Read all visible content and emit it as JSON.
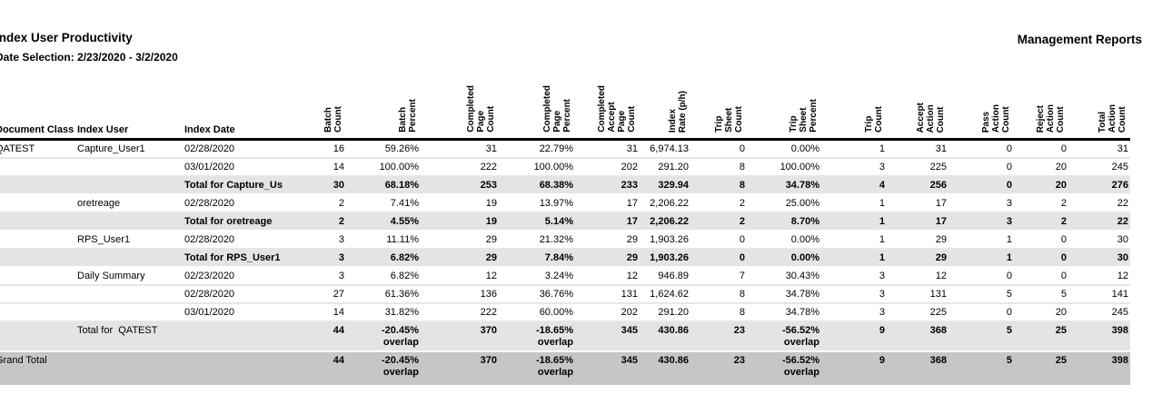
{
  "page": {
    "title": "Index User Productivity",
    "date_selection": "Date Selection: 2/23/2020 - 3/2/2020",
    "corner_title": "Management Reports"
  },
  "table": {
    "columns": [
      {
        "label": "Document Class",
        "rotated": false
      },
      {
        "label": "Index User",
        "rotated": false
      },
      {
        "label": "Index Date",
        "rotated": false
      },
      {
        "label": "Batch\nCount",
        "rotated": true
      },
      {
        "label": "Batch\nPercent",
        "rotated": true
      },
      {
        "label": "Completed\nPage\nCount",
        "rotated": true
      },
      {
        "label": "Completed\nPage\nPercent",
        "rotated": true
      },
      {
        "label": "Completed\nAccept\nPage\nCount",
        "rotated": true
      },
      {
        "label": "Index\nRate (p/h)",
        "rotated": true
      },
      {
        "label": "Trip\nSheet\nCount",
        "rotated": true
      },
      {
        "label": "Trip\nSheet\nPercent",
        "rotated": true
      },
      {
        "label": "Trip\nCount",
        "rotated": true
      },
      {
        "label": "Accept\nAction\nCount",
        "rotated": true
      },
      {
        "label": "Pass\nAction\nCount",
        "rotated": true
      },
      {
        "label": "Reject\nAction\nCount",
        "rotated": true
      },
      {
        "label": "Total\nAction\nCount",
        "rotated": true
      }
    ],
    "rows": [
      {
        "name": "row-capture-user1-02-28-2020",
        "style": "data",
        "doc": "QATEST",
        "user": "Capture_User1",
        "date": "02/28/2020",
        "values": [
          "16",
          "59.26%",
          "31",
          "22.79%",
          "31",
          "6,974.13",
          "0",
          "0.00%",
          "1",
          "31",
          "0",
          "0",
          "31"
        ]
      },
      {
        "name": "row-capture-user1-03-01-2020",
        "style": "data",
        "doc": "",
        "user": "",
        "date": "03/01/2020",
        "values": [
          "14",
          "100.00%",
          "222",
          "100.00%",
          "202",
          "291.20",
          "8",
          "100.00%",
          "3",
          "225",
          "0",
          "20",
          "245"
        ]
      },
      {
        "name": "row-total-capture-user",
        "style": "total",
        "doc": "",
        "user": "",
        "date": "Total for Capture_Us",
        "values": [
          "30",
          "68.18%",
          "253",
          "68.38%",
          "233",
          "329.94",
          "8",
          "34.78%",
          "4",
          "256",
          "0",
          "20",
          "276"
        ]
      },
      {
        "name": "row-oretreage-02-28-2020",
        "style": "data",
        "doc": "",
        "user": "oretreage",
        "date": "02/28/2020",
        "values": [
          "2",
          "7.41%",
          "19",
          "13.97%",
          "17",
          "2,206.22",
          "2",
          "25.00%",
          "1",
          "17",
          "3",
          "2",
          "22"
        ]
      },
      {
        "name": "row-total-oretreage",
        "style": "total",
        "doc": "",
        "user": "",
        "date": "Total for oretreage",
        "values": [
          "2",
          "4.55%",
          "19",
          "5.14%",
          "17",
          "2,206.22",
          "2",
          "8.70%",
          "1",
          "17",
          "3",
          "2",
          "22"
        ]
      },
      {
        "name": "row-rps-user1-02-28-2020",
        "style": "data",
        "doc": "",
        "user": "RPS_User1",
        "date": "02/28/2020",
        "values": [
          "3",
          "11.11%",
          "29",
          "21.32%",
          "29",
          "1,903.26",
          "0",
          "0.00%",
          "1",
          "29",
          "1",
          "0",
          "30"
        ]
      },
      {
        "name": "row-total-rps-user1",
        "style": "total",
        "doc": "",
        "user": "",
        "date": "Total for RPS_User1",
        "values": [
          "3",
          "6.82%",
          "29",
          "7.84%",
          "29",
          "1,903.26",
          "0",
          "0.00%",
          "1",
          "29",
          "1",
          "0",
          "30"
        ]
      },
      {
        "name": "row-daily-summary-02-23-2020",
        "style": "data",
        "doc": "",
        "user": "Daily Summary",
        "date": "02/23/2020",
        "values": [
          "3",
          "6.82%",
          "12",
          "3.24%",
          "12",
          "946.89",
          "7",
          "30.43%",
          "3",
          "12",
          "0",
          "0",
          "12"
        ]
      },
      {
        "name": "row-daily-summary-02-28-2020",
        "style": "data",
        "doc": "",
        "user": "",
        "date": "02/28/2020",
        "values": [
          "27",
          "61.36%",
          "136",
          "36.76%",
          "131",
          "1,624.62",
          "8",
          "34.78%",
          "3",
          "131",
          "5",
          "5",
          "141"
        ]
      },
      {
        "name": "row-daily-summary-03-01-2020",
        "style": "data",
        "doc": "",
        "user": "",
        "date": "03/01/2020",
        "values": [
          "14",
          "31.82%",
          "222",
          "60.00%",
          "202",
          "291.20",
          "8",
          "34.78%",
          "3",
          "225",
          "0",
          "20",
          "245"
        ]
      },
      {
        "name": "row-total-qatest",
        "style": "total",
        "doc": "",
        "user": "Total for  QATEST",
        "date": "",
        "values": [
          "44",
          "-20.45%\noverlap",
          "370",
          "-18.65%\noverlap",
          "345",
          "430.86",
          "23",
          "-56.52%\noverlap",
          "9",
          "368",
          "5",
          "25",
          "398"
        ]
      },
      {
        "name": "row-grand-total",
        "style": "grand",
        "doc": "Grand Total",
        "user": "",
        "date": "",
        "values": [
          "44",
          "-20.45%\noverlap",
          "370",
          "-18.65%\noverlap",
          "345",
          "430.86",
          "23",
          "-56.52%\noverlap",
          "9",
          "368",
          "5",
          "25",
          "398"
        ]
      }
    ]
  }
}
